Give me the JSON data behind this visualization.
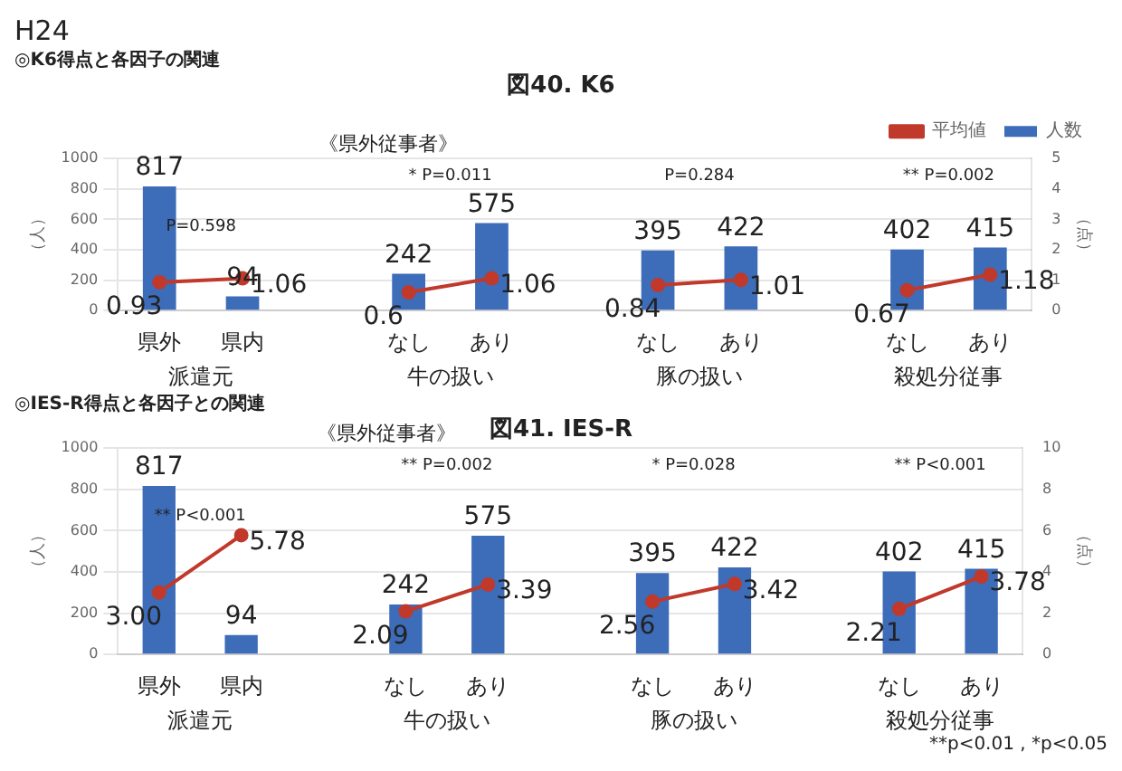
{
  "chart_data": [
    {
      "type": "bar",
      "title": "図40. K6",
      "subtitle": "◎K6得点と各因子の関連",
      "ylabel": "（人）",
      "y2label": "（点）",
      "categories": [
        "県外",
        "県内",
        null,
        "なし",
        "あり",
        null,
        "なし",
        "あり",
        null,
        "なし",
        "あり"
      ],
      "series": [
        {
          "name": "人数",
          "color": "#3d6cb9",
          "values": [
            817,
            94,
            null,
            242,
            575,
            null,
            395,
            422,
            null,
            402,
            415
          ]
        },
        {
          "name": "平均値",
          "type": "line",
          "axis": "y2",
          "color": "#c0392b",
          "values": [
            0.93,
            1.06,
            null,
            0.6,
            1.06,
            null,
            0.84,
            1.01,
            null,
            0.67,
            1.18
          ]
        }
      ],
      "ylim": [
        0,
        1000
      ],
      "yticks": [
        0,
        200,
        400,
        600,
        800,
        1000
      ],
      "y2lim": [
        0,
        5
      ],
      "y2ticks": [
        0,
        1,
        2,
        3,
        4,
        5
      ],
      "grid": "y",
      "legend": "top right",
      "marker": "circle",
      "data_labels": true,
      "annotations": [
        "派遣元",
        "牛の扱い",
        "豚の扱い",
        "殺処分従事",
        "P=0.598",
        "* P=0.011",
        "P=0.284",
        "** P=0.002",
        "《県外従事者》",
        "H24"
      ]
    },
    {
      "type": "bar",
      "title": "図41. IES-R",
      "subtitle": "◎IES-R得点と各因子との関連",
      "ylabel": "（人）",
      "y2label": "（点）",
      "categories": [
        "県外",
        "県内",
        null,
        "なし",
        "あり",
        null,
        "なし",
        "あり",
        null,
        "なし",
        "あり"
      ],
      "series": [
        {
          "color": "#3d6cb9",
          "values": [
            817,
            94,
            null,
            242,
            575,
            null,
            395,
            422,
            null,
            402,
            415
          ]
        },
        {
          "type": "line",
          "axis": "y2",
          "color": "#c0392b",
          "values": [
            3.0,
            5.78,
            null,
            2.09,
            3.39,
            null,
            2.56,
            3.42,
            null,
            2.21,
            3.78
          ],
          "value_labels": [
            "3.00",
            "5.78",
            null,
            "2.09",
            "3.39",
            null,
            "2.56",
            "3.42",
            null,
            "2.21",
            "3.78"
          ]
        }
      ],
      "ylim": [
        0,
        1000
      ],
      "yticks": [
        0,
        200,
        400,
        600,
        800,
        1000
      ],
      "y2lim": [
        0,
        10
      ],
      "y2ticks": [
        0,
        2,
        4,
        6,
        8,
        10
      ],
      "grid": "y",
      "marker": "circle",
      "data_labels": true,
      "annotations": [
        "派遣元",
        "牛の扱い",
        "豚の扱い",
        "殺処分従事",
        "** P<0.001",
        "** P=0.002",
        "* P=0.028",
        "** P<0.001",
        "《県外従事者》",
        "**p<0.01 , *p<0.05"
      ]
    }
  ]
}
